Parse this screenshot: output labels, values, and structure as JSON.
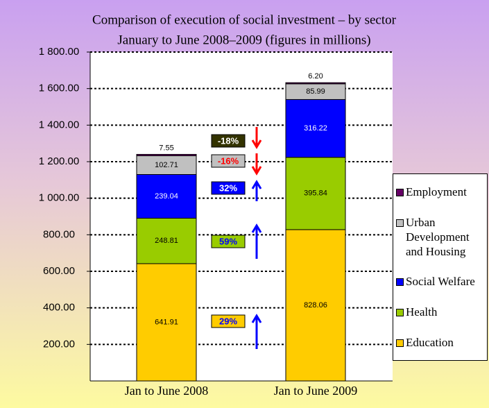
{
  "chart_data": {
    "type": "stacked_bar",
    "title": "Comparison of execution of social investment – by sector",
    "subtitle": "January to June 2008–2009 (figures in millions)",
    "categories": [
      "Jan to June 2008",
      "Jan to June 2009"
    ],
    "series": [
      {
        "name": "Education",
        "color": "#ffcc00",
        "text_color": "#000000",
        "values": [
          641.91,
          828.06
        ]
      },
      {
        "name": "Health",
        "color": "#99cc00",
        "text_color": "#000000",
        "values": [
          248.81,
          395.84
        ]
      },
      {
        "name": "Social Welfare",
        "color": "#0000ff",
        "text_color": "#ffffff",
        "values": [
          239.04,
          316.22
        ]
      },
      {
        "name": "Urban Development and Housing",
        "color": "#c0c0c0",
        "text_color": "#000000",
        "values": [
          102.71,
          85.99
        ]
      },
      {
        "name": "Employment",
        "color": "#660066",
        "text_color": "#000000",
        "values": [
          7.55,
          6.2
        ],
        "value_labels": [
          "7.55",
          "6.20"
        ]
      }
    ],
    "ylim": [
      0,
      1800
    ],
    "yticks": [
      {
        "value": 200,
        "label": "200.00"
      },
      {
        "value": 400,
        "label": "400.00"
      },
      {
        "value": 600,
        "label": "600.00"
      },
      {
        "value": 800,
        "label": "800.00"
      },
      {
        "value": 1000,
        "label": "1 000.00"
      },
      {
        "value": 1200,
        "label": "1 200.00"
      },
      {
        "value": 1400,
        "label": "1 400.00"
      },
      {
        "value": 1600,
        "label": "1 600.00"
      },
      {
        "value": 1800,
        "label": "1 800.00"
      }
    ],
    "grid": true,
    "legend": "right",
    "annotations": [
      {
        "text": "-18%",
        "box_color": "#333300",
        "text_color": "#ffffff",
        "arrow": "down",
        "arrow_color": "#ff0000"
      },
      {
        "text": "-16%",
        "box_color": "#c0c0c0",
        "text_color": "#ff0000",
        "arrow": "down",
        "arrow_color": "#ff0000"
      },
      {
        "text": "32%",
        "box_color": "#0000ff",
        "text_color": "#ffffff",
        "arrow": "up",
        "arrow_color": "#0000ff"
      },
      {
        "text": "59%",
        "box_color": "#99cc00",
        "text_color": "#0000ff",
        "arrow": "up",
        "arrow_color": "#0000ff"
      },
      {
        "text": "29%",
        "box_color": "#ffcc00",
        "text_color": "#0000ff",
        "arrow": "up",
        "arrow_color": "#0000ff"
      }
    ]
  }
}
